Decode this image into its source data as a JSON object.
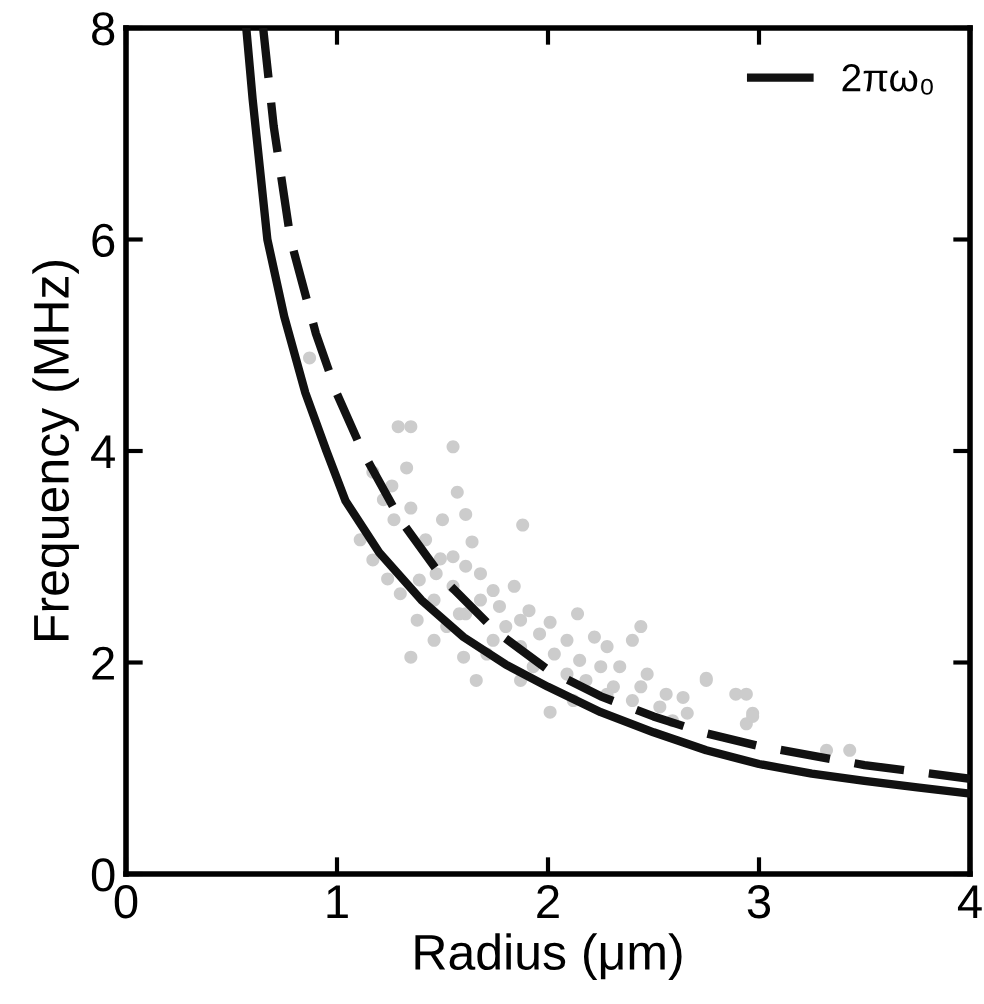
{
  "chart_data": {
    "type": "line",
    "xlabel": "Radius (μm)",
    "ylabel": "Frequency (MHz)",
    "xlim": [
      0,
      4
    ],
    "ylim": [
      0,
      8
    ],
    "xticks": [
      0,
      1,
      2,
      3,
      4
    ],
    "yticks": [
      0,
      2,
      4,
      6,
      8
    ],
    "grid": false,
    "legend": "top right",
    "series": [
      {
        "type": "scatter",
        "color": "#cccccc",
        "marker": "circle",
        "x": [
          1.29,
          1.35,
          1.55,
          1.33,
          1.17,
          1.26,
          1.57,
          1.22,
          1.35,
          1.5,
          1.61,
          1.88,
          1.11,
          1.64,
          1.42,
          1.17,
          1.49,
          1.55,
          1.24,
          1.39,
          1.61,
          1.68,
          1.38,
          1.35,
          1.55,
          1.74,
          1.84,
          1.91,
          2.01,
          2.14,
          1.46,
          1.61,
          1.77,
          1.96,
          2.09,
          2.22,
          2.28,
          2.44,
          2.4,
          1.6,
          1.66,
          1.74,
          1.87,
          2.03,
          2.15,
          2.25,
          2.34,
          2.47,
          2.01,
          2.12,
          2.31,
          2.44,
          2.56,
          2.64,
          2.75,
          2.89,
          2.94,
          2.97,
          2.94,
          2.66,
          2.53,
          3.32,
          3.43,
          1.52,
          1.8,
          1.71,
          1.93,
          2.18,
          2.4,
          2.59,
          1.3,
          1.46,
          1.87,
          2.09,
          2.28,
          1.58,
          1.87,
          1.68,
          1.47,
          1.27,
          0.87,
          2.75,
          2.97
        ],
        "values": [
          4.23,
          4.23,
          4.04,
          3.84,
          3.8,
          3.67,
          3.61,
          3.54,
          3.46,
          3.35,
          3.4,
          3.3,
          3.16,
          3.14,
          3.16,
          2.97,
          2.98,
          3.0,
          2.79,
          2.78,
          2.91,
          2.84,
          2.4,
          2.05,
          2.72,
          2.68,
          2.72,
          2.49,
          2.38,
          2.46,
          2.59,
          2.46,
          2.53,
          2.27,
          2.21,
          2.24,
          2.15,
          2.34,
          2.21,
          2.05,
          1.83,
          2.21,
          2.15,
          2.08,
          2.02,
          1.96,
          1.96,
          1.89,
          1.53,
          1.64,
          1.77,
          1.77,
          1.7,
          1.67,
          1.83,
          1.7,
          1.7,
          1.52,
          1.42,
          1.52,
          1.58,
          1.17,
          1.17,
          2.34,
          2.34,
          2.08,
          1.96,
          1.83,
          1.64,
          1.45,
          2.65,
          2.21,
          1.83,
          1.89,
          1.7,
          2.46,
          2.4,
          2.59,
          2.84,
          3.35,
          4.88,
          1.85,
          1.49
        ]
      },
      {
        "name": "2πω₀",
        "color": "#111111",
        "line_style": "solid",
        "x": [
          0.57,
          0.6,
          0.67,
          0.75,
          0.85,
          0.95,
          1.04,
          1.2,
          1.4,
          1.6,
          1.8,
          2.0,
          2.25,
          2.5,
          2.75,
          3.0,
          3.25,
          3.5,
          3.75,
          4.0
        ],
        "values": [
          8.0,
          7.33,
          6.0,
          5.27,
          4.55,
          4.0,
          3.53,
          3.04,
          2.59,
          2.24,
          1.98,
          1.77,
          1.53,
          1.34,
          1.17,
          1.04,
          0.95,
          0.88,
          0.82,
          0.76
        ]
      },
      {
        "color": "#111111",
        "line_style": "dashed",
        "x": [
          0.65,
          0.7,
          0.78,
          0.9,
          1.0,
          1.12,
          1.3,
          1.5,
          1.75,
          2.0,
          2.25,
          2.5,
          2.75,
          3.0,
          3.5,
          4.0
        ],
        "values": [
          8.0,
          7.07,
          6.0,
          5.11,
          4.54,
          4.0,
          3.35,
          2.8,
          2.3,
          1.93,
          1.68,
          1.49,
          1.33,
          1.21,
          1.03,
          0.9
        ]
      }
    ]
  }
}
